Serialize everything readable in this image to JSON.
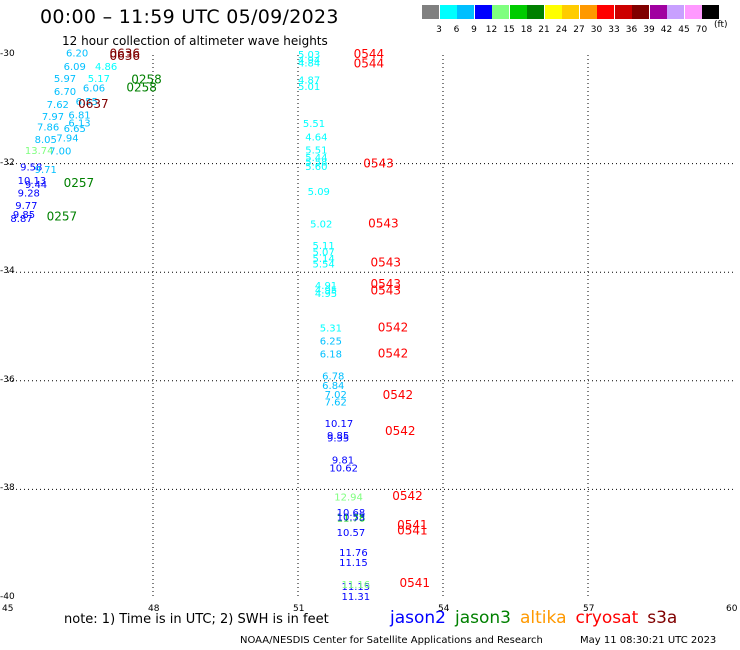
{
  "title": "00:00 – 11:59 UTC 05/09/2023",
  "subtitle": "12 hour collection of altimeter wave heights",
  "legend": {
    "unit": "(ft)",
    "levels": [
      "3",
      "6",
      "9",
      "12",
      "15",
      "18",
      "21",
      "24",
      "27",
      "30",
      "33",
      "36",
      "39",
      "42",
      "45",
      "70"
    ],
    "colors": [
      "#808080",
      "#00ffff",
      "#00bfff",
      "#0000ff",
      "#7fff7f",
      "#00cc00",
      "#008000",
      "#ffff00",
      "#ffcc00",
      "#ff9900",
      "#ff0000",
      "#cc0000",
      "#800000",
      "#a000a0",
      "#c8a0ff",
      "#ff99ff",
      "#000000"
    ]
  },
  "axes": {
    "lat_labels": [
      "-30",
      "-32",
      "-34",
      "-36",
      "-38",
      "-40"
    ],
    "lon_labels": [
      "45",
      "48",
      "51",
      "54",
      "57",
      "60"
    ]
  },
  "observations": [
    {
      "lon": 46.2,
      "lat": -29.95,
      "value": "6.20",
      "color": "#00bfff"
    },
    {
      "lon": 47.1,
      "lat": -29.97,
      "value": "0636",
      "color": "#800000",
      "time": true
    },
    {
      "lon": 47.1,
      "lat": -30.02,
      "value": "0636",
      "color": "#800000",
      "time": true
    },
    {
      "lon": 46.15,
      "lat": -30.2,
      "value": "6.09",
      "color": "#00bfff"
    },
    {
      "lon": 46.8,
      "lat": -30.2,
      "value": "4.86",
      "color": "#00ffff"
    },
    {
      "lon": 45.95,
      "lat": -30.42,
      "value": "5.97",
      "color": "#00bfff"
    },
    {
      "lon": 46.65,
      "lat": -30.42,
      "value": "5.17",
      "color": "#00ffff"
    },
    {
      "lon": 47.55,
      "lat": -30.45,
      "value": "0258",
      "color": "#008000",
      "time": true
    },
    {
      "lon": 47.45,
      "lat": -30.6,
      "value": "0258",
      "color": "#008000",
      "time": true
    },
    {
      "lon": 45.95,
      "lat": -30.66,
      "value": "6.70",
      "color": "#00bfff"
    },
    {
      "lon": 46.55,
      "lat": -30.6,
      "value": "6.06",
      "color": "#00bfff"
    },
    {
      "lon": 45.8,
      "lat": -30.9,
      "value": "7.62",
      "color": "#00bfff"
    },
    {
      "lon": 46.4,
      "lat": -30.85,
      "value": "6.55",
      "color": "#00bfff"
    },
    {
      "lon": 46.45,
      "lat": -30.9,
      "value": "0637",
      "color": "#800000",
      "time": true
    },
    {
      "lon": 45.7,
      "lat": -31.12,
      "value": "7.97",
      "color": "#00bfff"
    },
    {
      "lon": 46.25,
      "lat": -31.1,
      "value": "6.81",
      "color": "#00bfff"
    },
    {
      "lon": 46.25,
      "lat": -31.24,
      "value": "6.13",
      "color": "#00bfff"
    },
    {
      "lon": 45.6,
      "lat": -31.32,
      "value": "7.86",
      "color": "#00bfff"
    },
    {
      "lon": 46.15,
      "lat": -31.34,
      "value": "6.65",
      "color": "#00bfff"
    },
    {
      "lon": 45.55,
      "lat": -31.55,
      "value": "8.05",
      "color": "#00bfff"
    },
    {
      "lon": 46.0,
      "lat": -31.52,
      "value": "7.94",
      "color": "#00bfff"
    },
    {
      "lon": 45.35,
      "lat": -31.75,
      "value": "13.74",
      "color": "#7fff7f"
    },
    {
      "lon": 45.85,
      "lat": -31.76,
      "value": "7.00",
      "color": "#00bfff"
    },
    {
      "lon": 45.25,
      "lat": -32.05,
      "value": "9.58",
      "color": "#0000ff"
    },
    {
      "lon": 45.55,
      "lat": -32.1,
      "value": "9.71",
      "color": "#00bfff"
    },
    {
      "lon": 45.2,
      "lat": -32.3,
      "value": "10.13",
      "color": "#0000ff"
    },
    {
      "lon": 45.35,
      "lat": -32.38,
      "value": "9.44",
      "color": "#0000ff"
    },
    {
      "lon": 45.2,
      "lat": -32.53,
      "value": "9.28",
      "color": "#0000ff"
    },
    {
      "lon": 46.15,
      "lat": -32.36,
      "value": "0257",
      "color": "#008000",
      "time": true
    },
    {
      "lon": 45.15,
      "lat": -32.76,
      "value": "9.77",
      "color": "#0000ff"
    },
    {
      "lon": 45.1,
      "lat": -32.93,
      "value": "9.85",
      "color": "#0000ff"
    },
    {
      "lon": 45.05,
      "lat": -33.0,
      "value": "8.87",
      "color": "#0000ff"
    },
    {
      "lon": 45.8,
      "lat": -32.97,
      "value": "0257",
      "color": "#008000",
      "time": true
    },
    {
      "lon": 51.0,
      "lat": -29.98,
      "value": "5.03",
      "color": "#00ffff"
    },
    {
      "lon": 51.0,
      "lat": -30.08,
      "value": "4.94",
      "color": "#00ffff"
    },
    {
      "lon": 51.0,
      "lat": -30.14,
      "value": "4.84",
      "color": "#00ffff"
    },
    {
      "lon": 52.15,
      "lat": -29.98,
      "value": "0544",
      "color": "#ff0000",
      "time": true
    },
    {
      "lon": 52.15,
      "lat": -30.16,
      "value": "0544",
      "color": "#ff0000",
      "time": true
    },
    {
      "lon": 51.0,
      "lat": -30.45,
      "value": "4.87",
      "color": "#00ffff"
    },
    {
      "lon": 51.0,
      "lat": -30.57,
      "value": "5.01",
      "color": "#00ffff"
    },
    {
      "lon": 51.1,
      "lat": -31.25,
      "value": "5.51",
      "color": "#00ffff"
    },
    {
      "lon": 51.15,
      "lat": -31.5,
      "value": "4.64",
      "color": "#00ffff"
    },
    {
      "lon": 51.15,
      "lat": -31.74,
      "value": "5.51",
      "color": "#00ffff"
    },
    {
      "lon": 51.15,
      "lat": -31.88,
      "value": "5.44",
      "color": "#00ffff"
    },
    {
      "lon": 51.15,
      "lat": -31.96,
      "value": "5.58",
      "color": "#00ffff"
    },
    {
      "lon": 51.15,
      "lat": -32.04,
      "value": "5.60",
      "color": "#00ffff"
    },
    {
      "lon": 52.35,
      "lat": -32.0,
      "value": "0543",
      "color": "#ff0000",
      "time": true
    },
    {
      "lon": 51.2,
      "lat": -32.5,
      "value": "5.09",
      "color": "#00ffff"
    },
    {
      "lon": 51.25,
      "lat": -33.1,
      "value": "5.02",
      "color": "#00ffff"
    },
    {
      "lon": 52.45,
      "lat": -33.1,
      "value": "0543",
      "color": "#ff0000",
      "time": true
    },
    {
      "lon": 51.3,
      "lat": -33.5,
      "value": "5.11",
      "color": "#00ffff"
    },
    {
      "lon": 51.3,
      "lat": -33.62,
      "value": "5.07",
      "color": "#00ffff"
    },
    {
      "lon": 51.3,
      "lat": -33.74,
      "value": "5.14",
      "color": "#00ffff"
    },
    {
      "lon": 51.3,
      "lat": -33.84,
      "value": "5.54",
      "color": "#00ffff"
    },
    {
      "lon": 52.5,
      "lat": -33.82,
      "value": "0543",
      "color": "#ff0000",
      "time": true
    },
    {
      "lon": 51.35,
      "lat": -34.24,
      "value": "4.91",
      "color": "#00ffff"
    },
    {
      "lon": 51.35,
      "lat": -34.32,
      "value": "4.95",
      "color": "#00ffff"
    },
    {
      "lon": 51.35,
      "lat": -34.38,
      "value": "4.95",
      "color": "#00ffff"
    },
    {
      "lon": 52.5,
      "lat": -34.22,
      "value": "0543",
      "color": "#ff0000",
      "time": true
    },
    {
      "lon": 52.5,
      "lat": -34.34,
      "value": "0543",
      "color": "#ff0000",
      "time": true
    },
    {
      "lon": 51.45,
      "lat": -35.02,
      "value": "5.31",
      "color": "#00ffff"
    },
    {
      "lon": 52.65,
      "lat": -35.02,
      "value": "0542",
      "color": "#ff0000",
      "time": true
    },
    {
      "lon": 51.45,
      "lat": -35.26,
      "value": "6.25",
      "color": "#00bfff"
    },
    {
      "lon": 51.45,
      "lat": -35.5,
      "value": "6.18",
      "color": "#00bfff"
    },
    {
      "lon": 52.65,
      "lat": -35.5,
      "value": "0542",
      "color": "#ff0000",
      "time": true
    },
    {
      "lon": 51.5,
      "lat": -35.9,
      "value": "6.78",
      "color": "#00bfff"
    },
    {
      "lon": 51.5,
      "lat": -36.08,
      "value": "6.84",
      "color": "#00bfff"
    },
    {
      "lon": 51.55,
      "lat": -36.24,
      "value": "7.02",
      "color": "#00bfff"
    },
    {
      "lon": 51.55,
      "lat": -36.38,
      "value": "7.62",
      "color": "#00bfff"
    },
    {
      "lon": 52.75,
      "lat": -36.26,
      "value": "0542",
      "color": "#ff0000",
      "time": true
    },
    {
      "lon": 51.55,
      "lat": -36.78,
      "value": "10.17",
      "color": "#0000ff"
    },
    {
      "lon": 51.6,
      "lat": -37.0,
      "value": "9.85",
      "color": "#0000ff"
    },
    {
      "lon": 51.6,
      "lat": -37.04,
      "value": "9.35",
      "color": "#0000ff"
    },
    {
      "lon": 52.8,
      "lat": -36.92,
      "value": "0542",
      "color": "#ff0000",
      "time": true
    },
    {
      "lon": 51.7,
      "lat": -37.45,
      "value": "9.81",
      "color": "#0000ff"
    },
    {
      "lon": 51.65,
      "lat": -37.6,
      "value": "10.62",
      "color": "#0000ff"
    },
    {
      "lon": 51.75,
      "lat": -38.13,
      "value": "12.94",
      "color": "#7fff7f"
    },
    {
      "lon": 52.95,
      "lat": -38.12,
      "value": "0542",
      "color": "#ff0000",
      "time": true
    },
    {
      "lon": 51.8,
      "lat": -38.42,
      "value": "10.68",
      "color": "#0000ff"
    },
    {
      "lon": 51.8,
      "lat": -38.52,
      "value": "11.78",
      "color": "#00cc00"
    },
    {
      "lon": 51.8,
      "lat": -38.5,
      "value": "10.53",
      "color": "#0000ff"
    },
    {
      "lon": 51.8,
      "lat": -38.78,
      "value": "10.57",
      "color": "#0000ff"
    },
    {
      "lon": 53.05,
      "lat": -38.66,
      "value": "0541",
      "color": "#ff0000",
      "time": true
    },
    {
      "lon": 53.05,
      "lat": -38.76,
      "value": "0541",
      "color": "#ff0000",
      "time": true
    },
    {
      "lon": 51.85,
      "lat": -39.15,
      "value": "11.76",
      "color": "#0000ff"
    },
    {
      "lon": 51.85,
      "lat": -39.34,
      "value": "11.15",
      "color": "#0000ff"
    },
    {
      "lon": 51.9,
      "lat": -39.78,
      "value": "11.15",
      "color": "#0000ff"
    },
    {
      "lon": 51.9,
      "lat": -39.74,
      "value": "11.16",
      "color": "#7fff7f"
    },
    {
      "lon": 51.9,
      "lat": -39.96,
      "value": "11.31",
      "color": "#0000ff"
    },
    {
      "lon": 53.1,
      "lat": -39.72,
      "value": "0541",
      "color": "#ff0000",
      "time": true
    }
  ],
  "note": "note: 1) Time is in UTC; 2) SWH is in feet",
  "satellites": [
    {
      "name": "jason2",
      "color": "#0000ff"
    },
    {
      "name": "jason3",
      "color": "#008000"
    },
    {
      "name": "altika",
      "color": "#ff9900"
    },
    {
      "name": "cryosat",
      "color": "#ff0000"
    },
    {
      "name": "s3a",
      "color": "#800000"
    }
  ],
  "credit": "NOAA/NESDIS Center for Satellite Applications and Research",
  "timestamp": "May 11 08:30:21 UTC 2023"
}
